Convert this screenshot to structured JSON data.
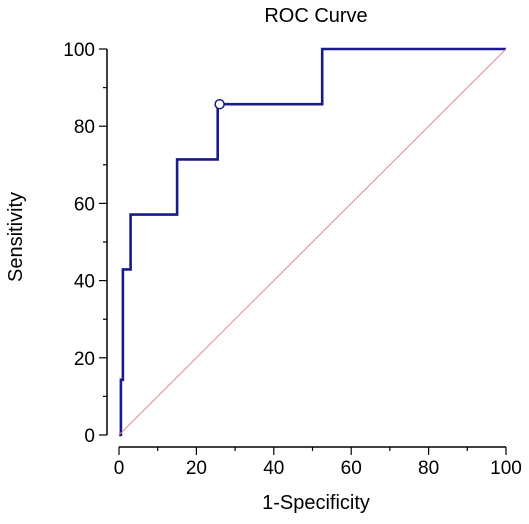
{
  "chart_data": {
    "type": "line",
    "title": "ROC Curve",
    "xlabel": "1-Specificity",
    "ylabel": "Sensitivity",
    "xlim": [
      0,
      100
    ],
    "ylim": [
      0,
      100
    ],
    "x_ticks": [
      "0",
      "20",
      "40",
      "60",
      "80",
      "100"
    ],
    "y_ticks": [
      "0",
      "20",
      "40",
      "60",
      "80",
      "100"
    ],
    "grid": false,
    "legend": "none",
    "series": [
      {
        "kind": "step-curve",
        "color": "#1a1a8c",
        "x": [
          0,
          0.5,
          0.5,
          1,
          1,
          3,
          3,
          15,
          15,
          25.5,
          25.5,
          52.5,
          52.5,
          100
        ],
        "y": [
          0,
          0,
          14.3,
          14.3,
          42.9,
          42.9,
          57.1,
          57.1,
          71.4,
          71.4,
          85.7,
          85.7,
          100,
          100
        ]
      },
      {
        "kind": "reference-diagonal",
        "color": "#e08a8a",
        "x": [
          0,
          100
        ],
        "y": [
          0,
          100
        ]
      }
    ],
    "highlight_point": {
      "x": 26,
      "y": 85.7,
      "marker": "open-circle"
    }
  }
}
